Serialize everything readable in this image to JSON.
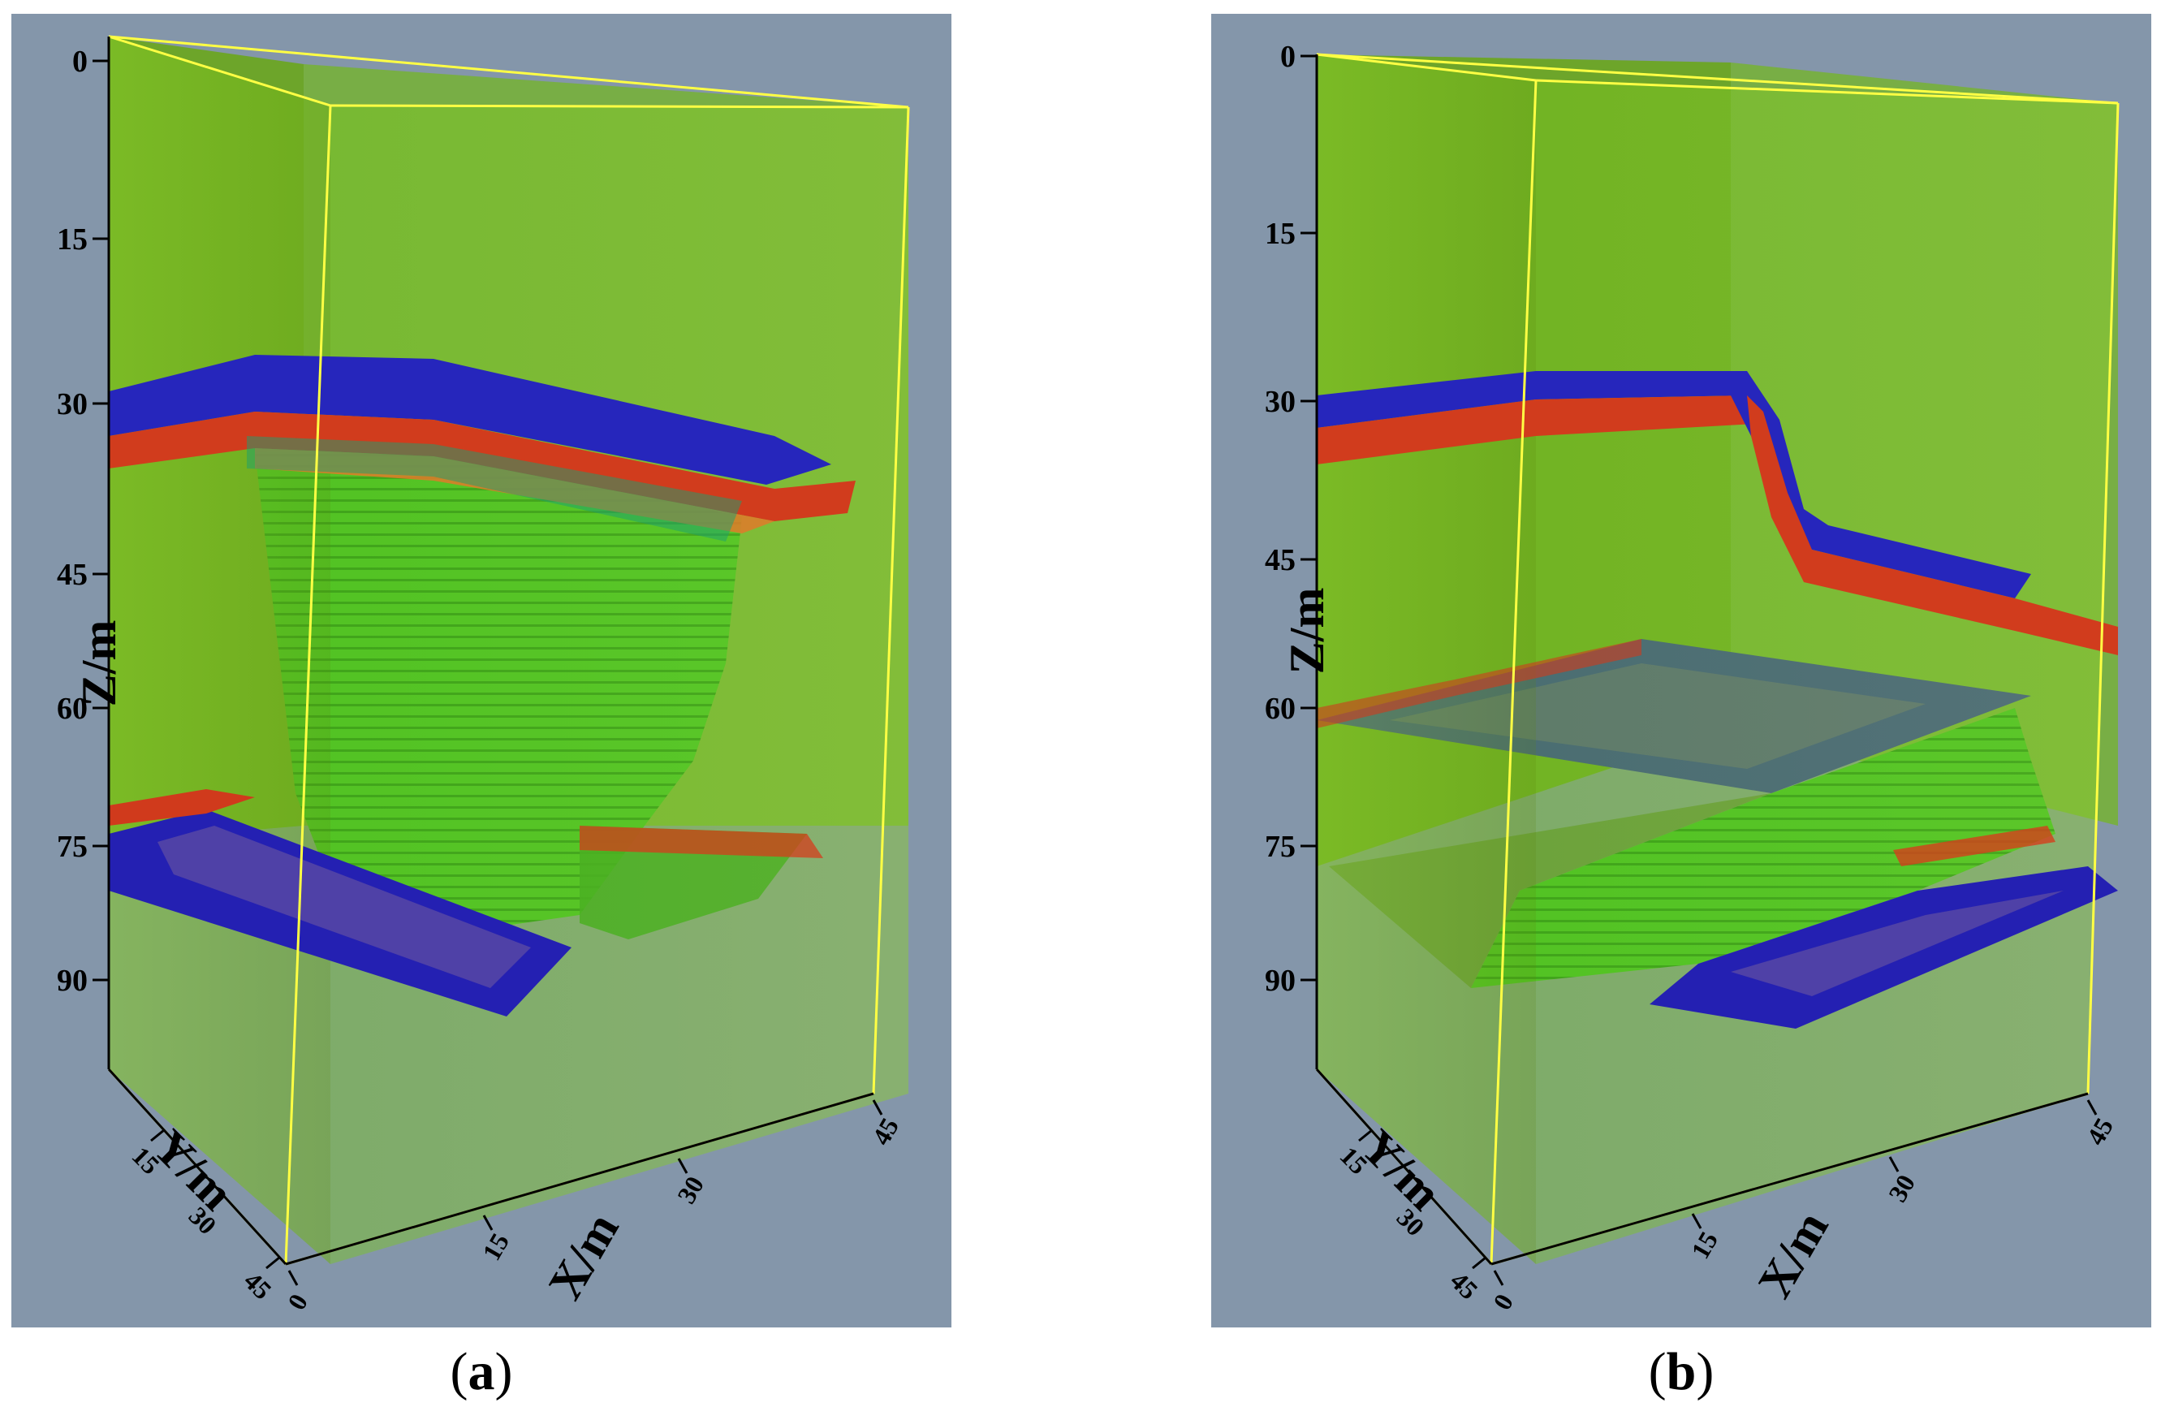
{
  "figure": {
    "panels": [
      {
        "id": "a",
        "caption_open": "(",
        "caption_letter": "a",
        "caption_close": ")",
        "z_axis": {
          "label": "Z/m",
          "ticks": [
            "0",
            "15",
            "30",
            "45",
            "60",
            "75",
            "90"
          ]
        },
        "y_axis": {
          "label": "Y/m",
          "ticks": [
            "15",
            "30",
            "45"
          ]
        },
        "x_axis": {
          "label": "X/m",
          "ticks": [
            "0",
            "15",
            "30",
            "45"
          ]
        }
      },
      {
        "id": "b",
        "caption_open": "(",
        "caption_letter": "b",
        "caption_close": ")",
        "z_axis": {
          "label": "Z/m",
          "ticks": [
            "0",
            "15",
            "30",
            "45",
            "60",
            "75",
            "90"
          ]
        },
        "y_axis": {
          "label": "Y/m",
          "ticks": [
            "15",
            "30",
            "45"
          ]
        },
        "x_axis": {
          "label": "X/m",
          "ticks": [
            "0",
            "15",
            "30",
            "45"
          ]
        }
      }
    ],
    "colors": {
      "background": "#8496aa",
      "medium": "#7ccc1c",
      "cavity": "#2fc02a",
      "reflector_red": "#d23a1e",
      "reflector_blue": "#2020b8",
      "frame_line": "#ffff44"
    }
  }
}
